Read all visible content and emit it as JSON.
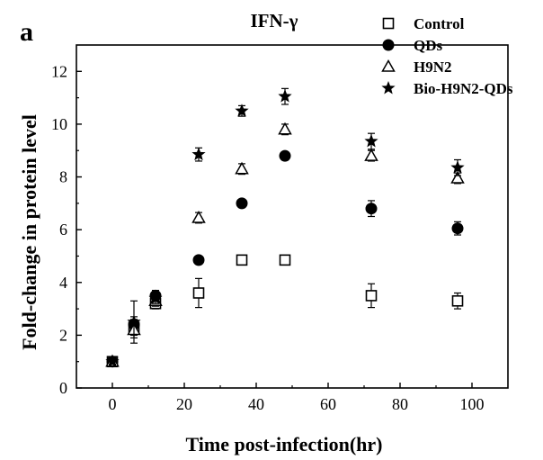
{
  "panel_label": "a",
  "chart_data": {
    "type": "scatter",
    "title": "IFN-γ",
    "xlabel": "Time post-infection(hr)",
    "ylabel": "Fold-change in protein level",
    "xlim": [
      -10,
      110
    ],
    "ylim": [
      0,
      13
    ],
    "xticks": [
      "0",
      "20",
      "40",
      "60",
      "80",
      "100"
    ],
    "yticks": [
      "0",
      "2",
      "4",
      "6",
      "8",
      "10",
      "12"
    ],
    "legend_position": "top-right",
    "series": [
      {
        "name": "Control",
        "marker": "open-square",
        "x": [
          0,
          6,
          12,
          24,
          36,
          48,
          72,
          96
        ],
        "y": [
          1.0,
          2.3,
          3.2,
          3.6,
          4.85,
          4.85,
          3.5,
          3.3
        ],
        "err": [
          0.15,
          0.3,
          0.2,
          0.55,
          0.15,
          0.15,
          0.45,
          0.3
        ]
      },
      {
        "name": "QDs",
        "marker": "filled-circle",
        "x": [
          0,
          6,
          12,
          24,
          36,
          48,
          72,
          96
        ],
        "y": [
          1.0,
          2.4,
          3.5,
          4.85,
          7.0,
          8.8,
          6.8,
          6.05
        ],
        "err": [
          0.1,
          0.3,
          0.2,
          0.15,
          0.15,
          0.15,
          0.3,
          0.25
        ]
      },
      {
        "name": "H9N2",
        "marker": "open-triangle",
        "x": [
          0,
          6,
          12,
          24,
          36,
          48,
          72,
          96
        ],
        "y": [
          1.0,
          2.2,
          3.3,
          6.45,
          8.3,
          9.8,
          8.8,
          7.95
        ],
        "err": [
          0.1,
          0.3,
          0.2,
          0.2,
          0.2,
          0.2,
          0.2,
          0.2
        ]
      },
      {
        "name": "Bio-H9N2-QDs",
        "marker": "filled-star",
        "x": [
          0,
          6,
          12,
          24,
          36,
          48,
          72,
          96
        ],
        "y": [
          1.0,
          2.5,
          3.4,
          8.85,
          10.5,
          11.05,
          9.35,
          8.35
        ],
        "err": [
          0.1,
          0.8,
          0.2,
          0.25,
          0.2,
          0.3,
          0.3,
          0.3
        ]
      }
    ]
  }
}
